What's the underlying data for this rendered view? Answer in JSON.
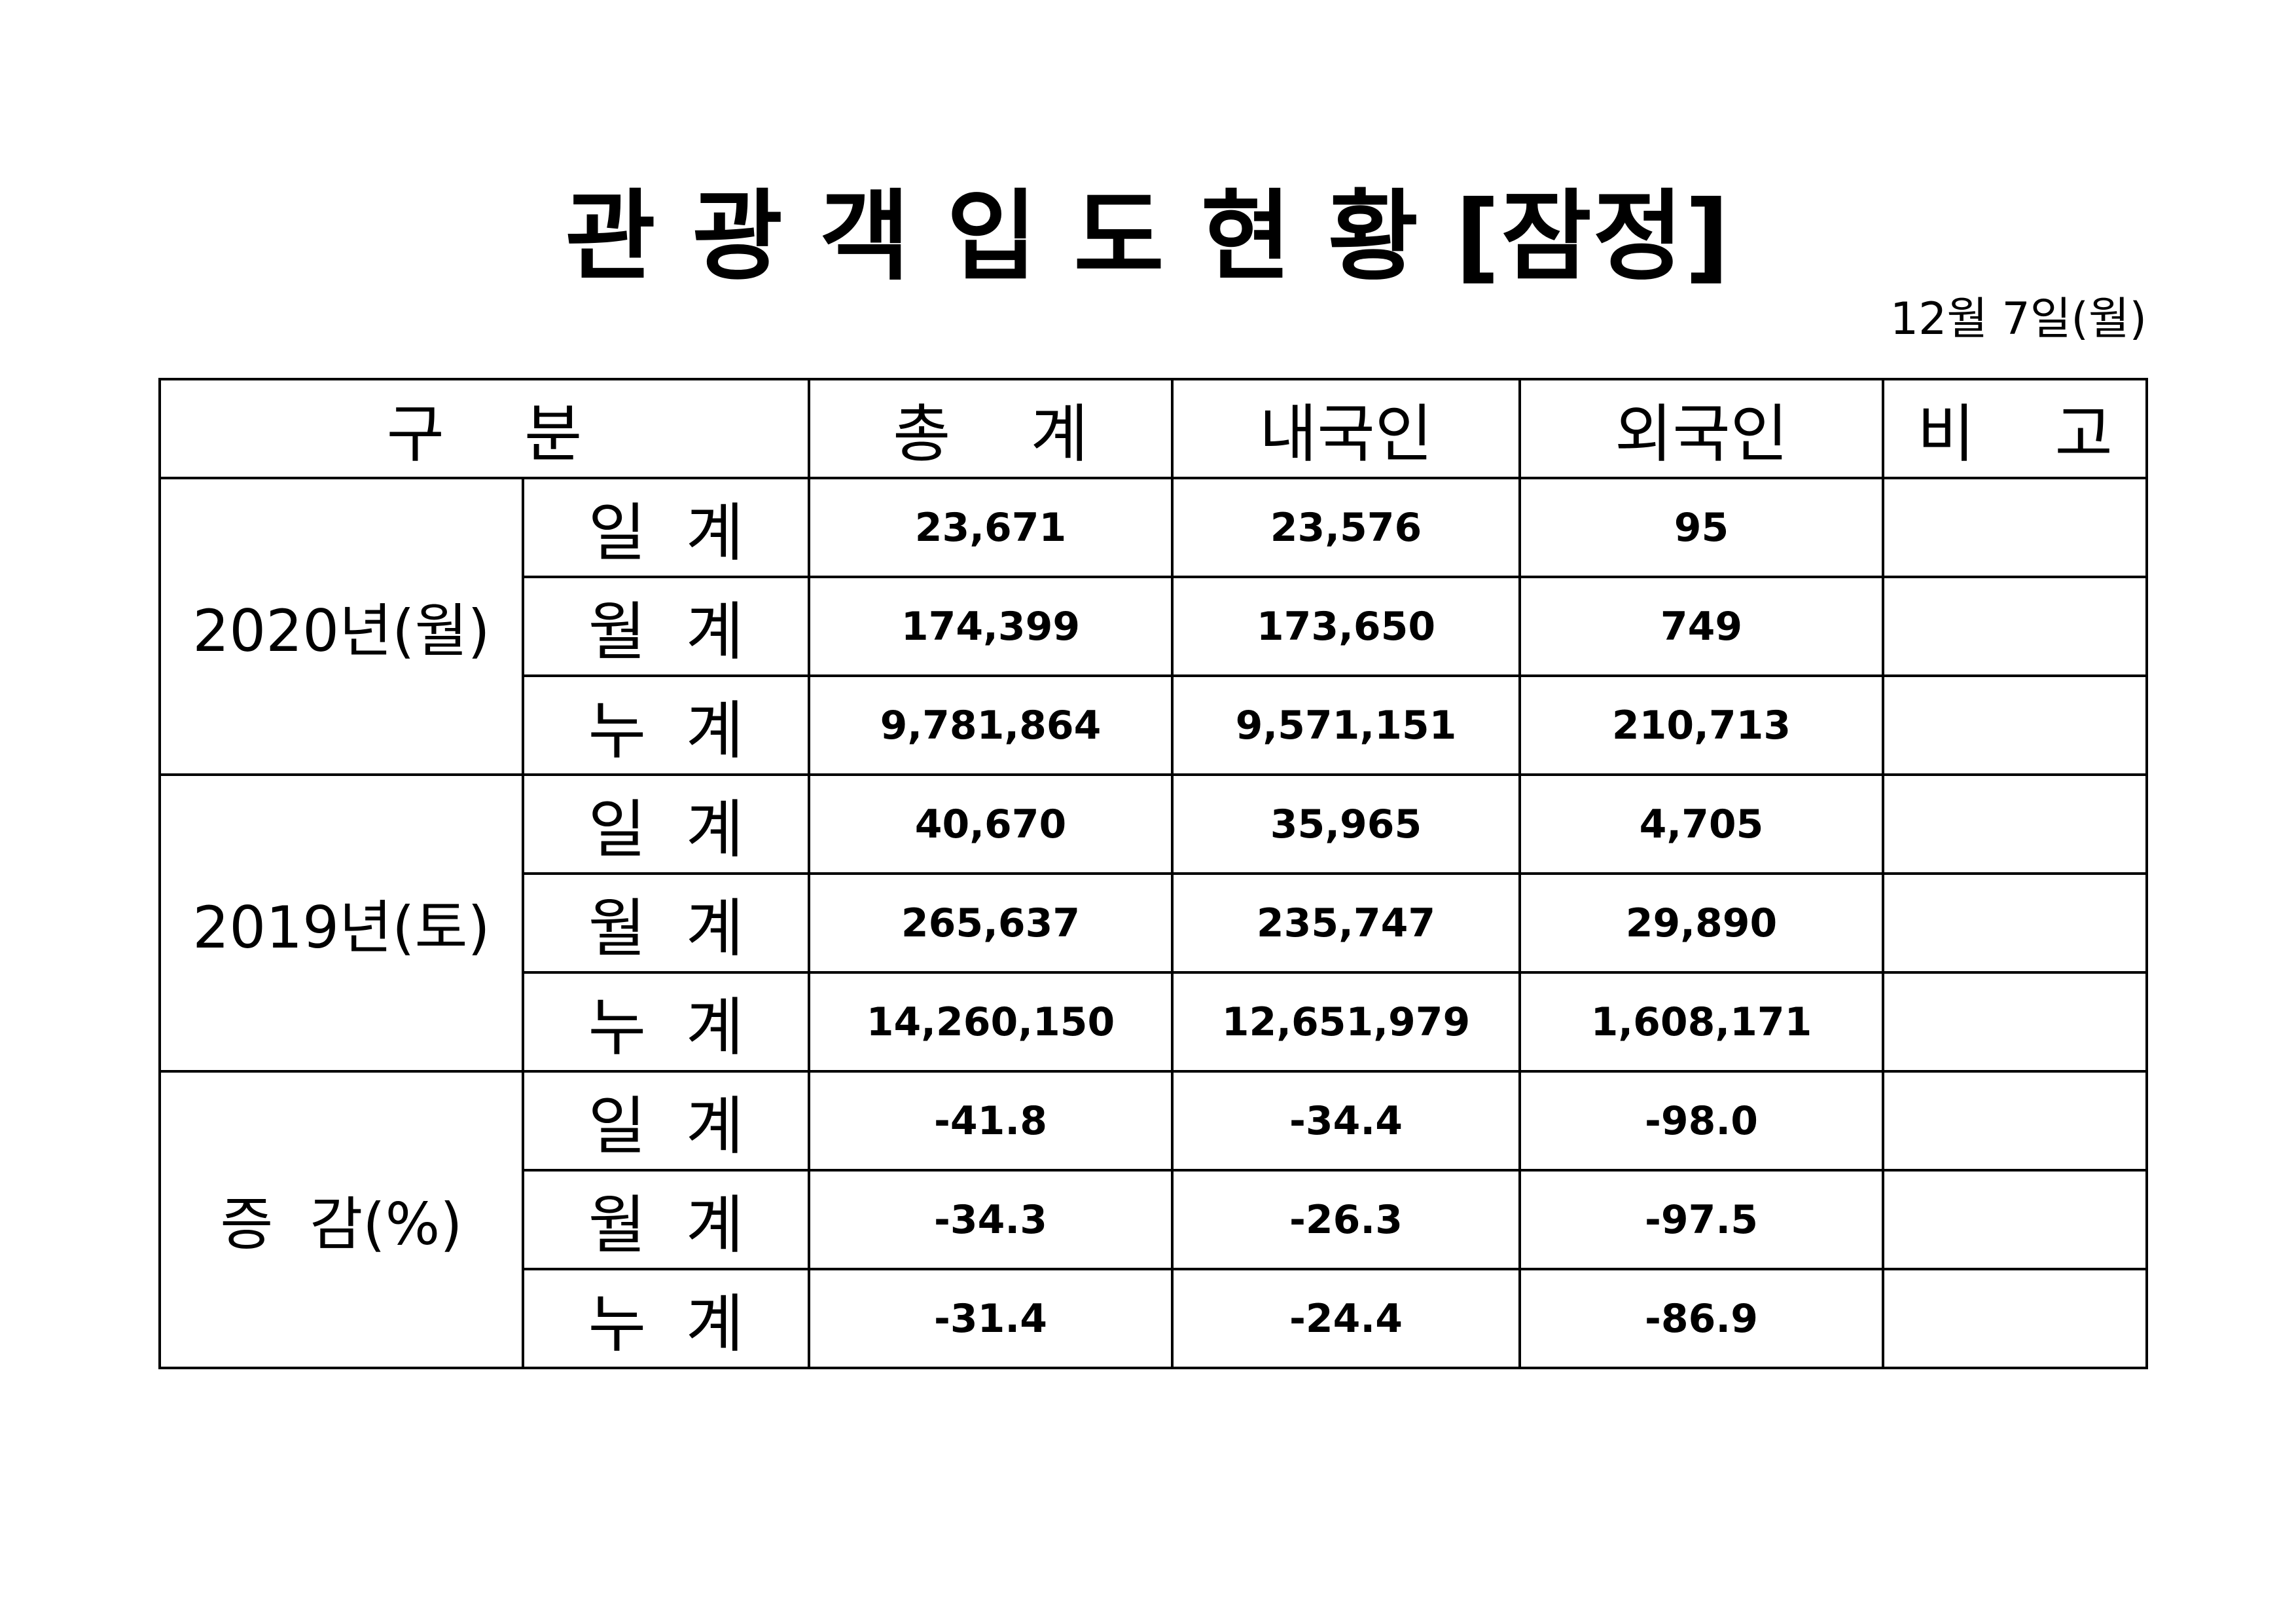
{
  "document": {
    "title": "관 광 객 입 도 현 황 [잠정]",
    "date": "12월  7일(월)"
  },
  "table": {
    "headers": {
      "category": "구    분",
      "total": "총    계",
      "domestic": "내국인",
      "foreign": "외국인",
      "remarks": "비    고"
    },
    "groups": [
      {
        "label": "2020년(월)",
        "rows": [
          {
            "label": "일  계",
            "total": "23,671",
            "domestic": "23,576",
            "foreign": "95",
            "remarks": ""
          },
          {
            "label": "월  계",
            "total": "174,399",
            "domestic": "173,650",
            "foreign": "749",
            "remarks": ""
          },
          {
            "label": "누  계",
            "total": "9,781,864",
            "domestic": "9,571,151",
            "foreign": "210,713",
            "remarks": ""
          }
        ]
      },
      {
        "label": "2019년(토)",
        "rows": [
          {
            "label": "일  계",
            "total": "40,670",
            "domestic": "35,965",
            "foreign": "4,705",
            "remarks": ""
          },
          {
            "label": "월  계",
            "total": "265,637",
            "domestic": "235,747",
            "foreign": "29,890",
            "remarks": ""
          },
          {
            "label": "누  계",
            "total": "14,260,150",
            "domestic": "12,651,979",
            "foreign": "1,608,171",
            "remarks": ""
          }
        ]
      },
      {
        "label": "증  감(%)",
        "rows": [
          {
            "label": "일  계",
            "total": "-41.8",
            "domestic": "-34.4",
            "foreign": "-98.0",
            "remarks": ""
          },
          {
            "label": "월  계",
            "total": "-34.3",
            "domestic": "-26.3",
            "foreign": "-97.5",
            "remarks": ""
          },
          {
            "label": "누  계",
            "total": "-31.4",
            "domestic": "-24.4",
            "foreign": "-86.9",
            "remarks": ""
          }
        ]
      }
    ]
  }
}
